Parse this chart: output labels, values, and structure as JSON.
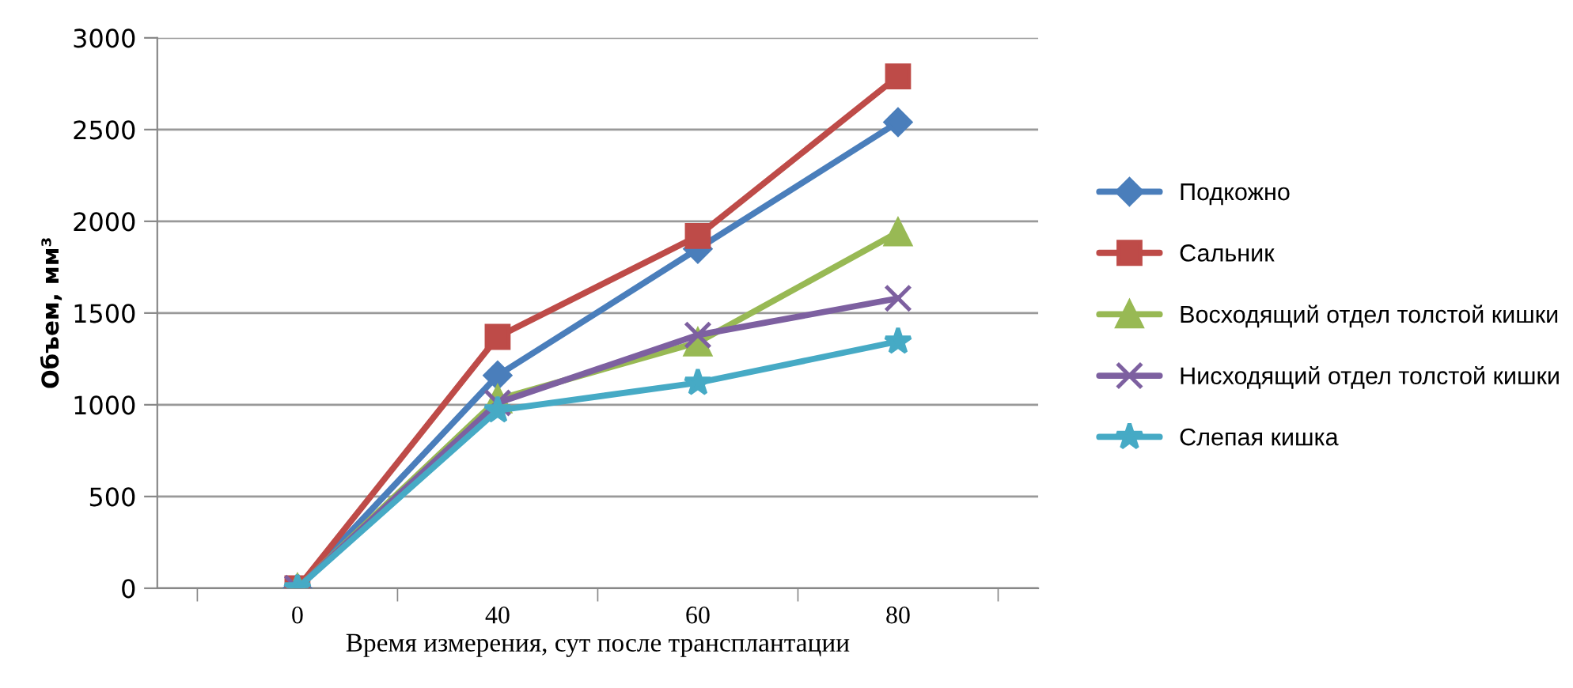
{
  "chart_data": {
    "type": "line",
    "xlabel": "Время измерения, сут после трансплантации",
    "ylabel": "Объем, мм³",
    "categories": [
      "0",
      "40",
      "60",
      "80"
    ],
    "ylim": [
      0,
      3000
    ],
    "yticks": [
      0,
      500,
      1000,
      1500,
      2000,
      2500,
      3000
    ],
    "grid": "y",
    "legend": "right",
    "line_style": "solid",
    "series": [
      {
        "name": "Подкожно",
        "color": "#4a7ebb",
        "marker": "diamond",
        "values": [
          0,
          1160,
          1850,
          2540
        ]
      },
      {
        "name": "Сальник",
        "color": "#be4b48",
        "marker": "square",
        "values": [
          0,
          1370,
          1920,
          2790
        ]
      },
      {
        "name": "Восходящий отдел толстой кишки",
        "color": "#98b954",
        "marker": "triangle",
        "values": [
          0,
          1030,
          1340,
          1940
        ]
      },
      {
        "name": "Нисходящий отдел толстой кишки",
        "color": "#7d60a0",
        "marker": "cross",
        "values": [
          0,
          1010,
          1380,
          1580
        ]
      },
      {
        "name": "Слепая кишка",
        "color": "#46aac5",
        "marker": "star",
        "values": [
          0,
          970,
          1120,
          1345
        ]
      }
    ]
  }
}
